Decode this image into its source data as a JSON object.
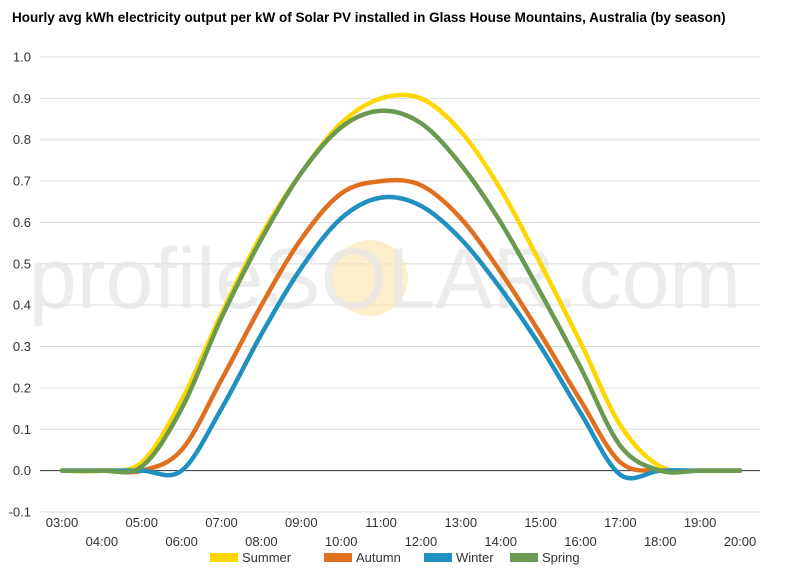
{
  "chart_data": {
    "type": "line",
    "title": "Hourly avg kWh electricity output per kW of Solar PV installed in Glass House Mountains, Australia (by season)",
    "xlabel": "",
    "ylabel": "",
    "ylim": [
      -0.1,
      1.0
    ],
    "yticks": [
      "-0.1",
      "0.0",
      "0.1",
      "0.2",
      "0.3",
      "0.4",
      "0.5",
      "0.6",
      "0.7",
      "0.8",
      "0.9",
      "1.0"
    ],
    "x": [
      "03:00",
      "04:00",
      "05:00",
      "06:00",
      "07:00",
      "08:00",
      "09:00",
      "10:00",
      "11:00",
      "12:00",
      "13:00",
      "14:00",
      "15:00",
      "16:00",
      "17:00",
      "18:00",
      "19:00",
      "20:00"
    ],
    "grid": true,
    "legend_position": "bottom",
    "watermark": "profileSOLAR.com",
    "series": [
      {
        "name": "Summer",
        "color": "#FFD700",
        "values": [
          0,
          0,
          0.02,
          0.17,
          0.38,
          0.57,
          0.72,
          0.84,
          0.9,
          0.9,
          0.82,
          0.68,
          0.5,
          0.31,
          0.11,
          0.01,
          0,
          0
        ]
      },
      {
        "name": "Autumn",
        "color": "#E07020",
        "values": [
          0,
          0,
          0,
          0.05,
          0.22,
          0.4,
          0.56,
          0.67,
          0.7,
          0.69,
          0.61,
          0.48,
          0.33,
          0.17,
          0.02,
          0,
          0,
          0
        ]
      },
      {
        "name": "Winter",
        "color": "#2090C0",
        "values": [
          0,
          0,
          0,
          0,
          0.15,
          0.33,
          0.49,
          0.61,
          0.66,
          0.64,
          0.56,
          0.44,
          0.3,
          0.14,
          -0.01,
          0,
          0,
          0
        ]
      },
      {
        "name": "Spring",
        "color": "#6A9A50",
        "values": [
          0,
          0,
          0.01,
          0.15,
          0.37,
          0.56,
          0.72,
          0.83,
          0.87,
          0.84,
          0.74,
          0.6,
          0.43,
          0.25,
          0.06,
          0,
          0,
          0
        ]
      }
    ]
  }
}
